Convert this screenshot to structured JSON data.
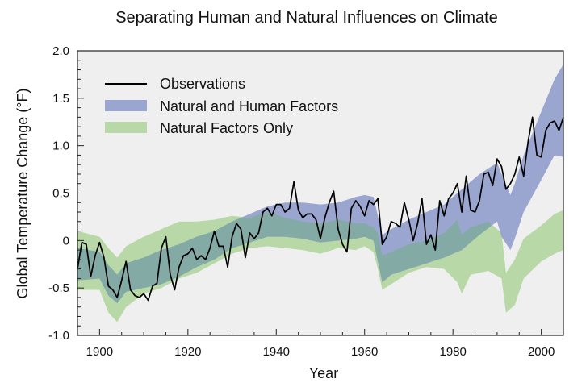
{
  "chart_data": {
    "type": "area",
    "title": "Separating Human and Natural Influences on Climate",
    "xlabel": "Year",
    "ylabel": "Global Temperature Change (°F)",
    "xlim": [
      1895,
      2005
    ],
    "ylim": [
      -1.0,
      2.0
    ],
    "x_ticks": [
      1900,
      1920,
      1940,
      1960,
      1980,
      2000
    ],
    "y_ticks": [
      -1.0,
      -0.5,
      0,
      0.5,
      1.0,
      1.5,
      2.0
    ],
    "y_tick_labels": [
      "-1.0",
      "-0.5",
      "0",
      "0.5",
      "1.0",
      "1.5",
      "2.0"
    ],
    "grid": false,
    "legend_position": "top-left",
    "colors": {
      "background": "#efefef",
      "observations": "#000000",
      "natural_and_human": "#9aa6cf",
      "natural_only": "#b9d8a7",
      "overlap": "#84aaa5"
    },
    "series": [
      {
        "name": "Observations",
        "type": "line",
        "x": [
          1895,
          1896,
          1897,
          1898,
          1899,
          1900,
          1901,
          1902,
          1903,
          1904,
          1905,
          1906,
          1907,
          1908,
          1909,
          1910,
          1911,
          1912,
          1913,
          1914,
          1915,
          1916,
          1917,
          1918,
          1919,
          1920,
          1921,
          1922,
          1923,
          1924,
          1925,
          1926,
          1927,
          1928,
          1929,
          1930,
          1931,
          1932,
          1933,
          1934,
          1935,
          1936,
          1937,
          1938,
          1939,
          1940,
          1941,
          1942,
          1943,
          1944,
          1945,
          1946,
          1947,
          1948,
          1949,
          1950,
          1951,
          1952,
          1953,
          1954,
          1955,
          1956,
          1957,
          1958,
          1959,
          1960,
          1961,
          1962,
          1963,
          1964,
          1965,
          1966,
          1967,
          1968,
          1969,
          1970,
          1971,
          1972,
          1973,
          1974,
          1975,
          1976,
          1977,
          1978,
          1979,
          1980,
          1981,
          1982,
          1983,
          1984,
          1985,
          1986,
          1987,
          1988,
          1989,
          1990,
          1991,
          1992,
          1993,
          1994,
          1995,
          1996,
          1997,
          1998,
          1999,
          2000,
          2001,
          2002,
          2003,
          2004,
          2005
        ],
        "values": [
          -0.3,
          -0.02,
          -0.04,
          -0.38,
          -0.16,
          -0.02,
          -0.18,
          -0.48,
          -0.52,
          -0.6,
          -0.42,
          -0.22,
          -0.52,
          -0.58,
          -0.6,
          -0.56,
          -0.63,
          -0.48,
          -0.45,
          -0.08,
          0.04,
          -0.36,
          -0.52,
          -0.28,
          -0.16,
          -0.14,
          -0.08,
          -0.2,
          -0.16,
          -0.2,
          -0.08,
          0.1,
          -0.06,
          -0.06,
          -0.28,
          0.04,
          0.18,
          0.12,
          -0.18,
          0.08,
          0.02,
          0.08,
          0.3,
          0.34,
          0.26,
          0.38,
          0.38,
          0.3,
          0.34,
          0.62,
          0.32,
          0.24,
          0.28,
          0.28,
          0.22,
          0.02,
          0.24,
          0.4,
          0.52,
          0.12,
          -0.04,
          -0.12,
          0.34,
          0.42,
          0.36,
          0.26,
          0.42,
          0.38,
          0.44,
          -0.04,
          0.04,
          0.2,
          0.18,
          0.14,
          0.4,
          0.22,
          0.0,
          0.18,
          0.44,
          -0.04,
          0.06,
          -0.1,
          0.42,
          0.26,
          0.44,
          0.5,
          0.6,
          0.3,
          0.68,
          0.32,
          0.3,
          0.42,
          0.7,
          0.72,
          0.58,
          0.86,
          0.78,
          0.54,
          0.6,
          0.7,
          0.88,
          0.68,
          1.04,
          1.3,
          0.9,
          0.88,
          1.16,
          1.24,
          1.26,
          1.16,
          1.3
        ]
      },
      {
        "name": "Natural and Human Factors",
        "type": "band",
        "x": [
          1895,
          1900,
          1902,
          1904,
          1906,
          1910,
          1914,
          1918,
          1922,
          1926,
          1930,
          1934,
          1938,
          1942,
          1946,
          1950,
          1954,
          1958,
          1960,
          1962,
          1963,
          1964,
          1966,
          1970,
          1974,
          1978,
          1982,
          1986,
          1990,
          1991,
          1993,
          1994,
          1996,
          2000,
          2003,
          2005
        ],
        "lower": [
          -0.42,
          -0.4,
          -0.58,
          -0.66,
          -0.54,
          -0.5,
          -0.46,
          -0.38,
          -0.28,
          -0.2,
          -0.08,
          -0.02,
          0.04,
          0.04,
          0.02,
          -0.02,
          0.0,
          0.02,
          0.04,
          0.0,
          -0.22,
          -0.44,
          -0.36,
          -0.3,
          -0.24,
          -0.18,
          -0.1,
          0.06,
          0.2,
          0.04,
          -0.1,
          0.02,
          0.3,
          0.64,
          0.9,
          0.88
        ],
        "upper": [
          -0.08,
          -0.12,
          -0.26,
          -0.36,
          -0.24,
          -0.18,
          -0.1,
          -0.04,
          0.04,
          0.1,
          0.2,
          0.28,
          0.36,
          0.4,
          0.4,
          0.38,
          0.4,
          0.46,
          0.48,
          0.46,
          0.26,
          0.06,
          0.12,
          0.22,
          0.3,
          0.38,
          0.54,
          0.7,
          0.82,
          0.7,
          0.48,
          0.6,
          0.9,
          1.36,
          1.7,
          1.86
        ]
      },
      {
        "name": "Natural Factors Only",
        "type": "band",
        "x": [
          1895,
          1900,
          1902,
          1904,
          1906,
          1910,
          1914,
          1918,
          1922,
          1926,
          1930,
          1934,
          1938,
          1942,
          1946,
          1950,
          1954,
          1958,
          1960,
          1962,
          1963,
          1964,
          1966,
          1970,
          1974,
          1978,
          1981,
          1982,
          1984,
          1988,
          1991,
          1992,
          1994,
          1996,
          2000,
          2003,
          2005
        ],
        "lower": [
          -0.52,
          -0.52,
          -0.76,
          -0.86,
          -0.7,
          -0.56,
          -0.5,
          -0.4,
          -0.34,
          -0.24,
          -0.14,
          -0.08,
          -0.06,
          -0.08,
          -0.1,
          -0.14,
          -0.08,
          -0.1,
          -0.06,
          -0.12,
          -0.3,
          -0.52,
          -0.46,
          -0.34,
          -0.28,
          -0.3,
          -0.44,
          -0.56,
          -0.36,
          -0.32,
          -0.4,
          -0.76,
          -0.68,
          -0.4,
          -0.22,
          -0.14,
          -0.1
        ],
        "upper": [
          0.1,
          0.04,
          -0.08,
          -0.18,
          -0.06,
          0.04,
          0.12,
          0.2,
          0.2,
          0.22,
          0.26,
          0.24,
          0.3,
          0.24,
          0.2,
          0.18,
          0.22,
          0.18,
          0.18,
          0.14,
          0.08,
          -0.16,
          -0.12,
          -0.04,
          0.0,
          0.08,
          0.22,
          0.06,
          0.14,
          0.2,
          0.08,
          -0.34,
          -0.2,
          0.02,
          0.16,
          0.28,
          0.32
        ]
      }
    ]
  }
}
